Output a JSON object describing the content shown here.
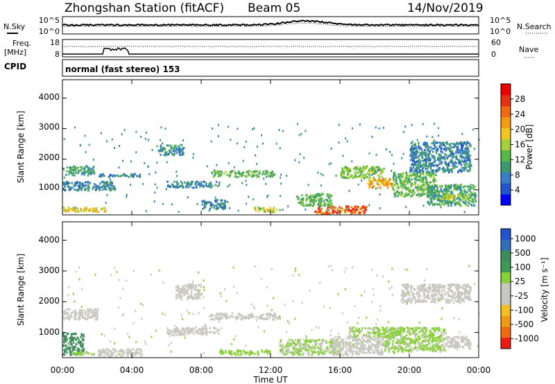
{
  "header": {
    "station": "Zhongshan Station (fitACF)",
    "beam": "Beam 05",
    "date": "14/Nov/2019"
  },
  "noise_panel": {
    "left_label": "N.Sky",
    "left_ticks": [
      "10^5",
      "10^0"
    ],
    "right_ticks": [
      "10^5",
      "10^0"
    ],
    "right_label": "N.Search"
  },
  "freq_panel": {
    "label_line1": "Freq.",
    "label_line2": "[MHz]",
    "left_ticks": [
      "18",
      "8"
    ],
    "right_ticks": [
      "60",
      "0"
    ],
    "right_label": "Nave"
  },
  "cpid": {
    "label": "CPID",
    "text": "normal (fast stereo) 153"
  },
  "power_panel": {
    "ylabel": "Slant Range [km]",
    "yticks": [
      "1000",
      "2000",
      "3000",
      "4000"
    ],
    "colorbar": {
      "label": "Power [dB]",
      "ticks": [
        "4",
        "8",
        "12",
        "16",
        "20",
        "24",
        "28"
      ],
      "colors": [
        "#0000ff",
        "#2255cc",
        "#3a7dc8",
        "#3d9a6e",
        "#55b848",
        "#a6cf3c",
        "#f2c81e",
        "#f39c12",
        "#ef6a10",
        "#e63012",
        "#ee0000"
      ]
    }
  },
  "velocity_panel": {
    "ylabel": "Slant Range [km]",
    "yticks": [
      "1000",
      "2000",
      "3000",
      "4000"
    ],
    "colorbar": {
      "label": "Velocity [m s⁻¹]",
      "ticks": [
        "1000",
        "500",
        "100",
        "25",
        "-25",
        "-100",
        "-500",
        "-1000"
      ],
      "colors": [
        "#2255cc",
        "#2f6fba",
        "#3d8c5a",
        "#3f9a58",
        "#88d038",
        "#c8c8c0",
        "#c8c8c0",
        "#f0c020",
        "#f09a10",
        "#f06a10",
        "#ee1a10"
      ]
    }
  },
  "x_axis": {
    "label": "Time UT",
    "ticks": [
      "00:00",
      "04:00",
      "08:00",
      "12:00",
      "16:00",
      "20:00",
      "00:00"
    ]
  },
  "chart_data": [
    {
      "type": "heatmap",
      "title": "Power",
      "ylabel": "Slant Range [km]",
      "xlabel": "Time UT",
      "xlim_hours": [
        0,
        24
      ],
      "ylim_km": [
        180,
        4600
      ],
      "clim_db": [
        0,
        30
      ],
      "regions": [
        {
          "t": [
            0.0,
            1.8
          ],
          "r": [
            1500,
            1800
          ],
          "level": 9
        },
        {
          "t": [
            0.0,
            3.0
          ],
          "r": [
            1000,
            1300
          ],
          "level": 7
        },
        {
          "t": [
            0.0,
            2.6
          ],
          "r": [
            300,
            450
          ],
          "level": 18
        },
        {
          "t": [
            2.0,
            4.5
          ],
          "r": [
            1450,
            1550
          ],
          "level": 7
        },
        {
          "t": [
            5.5,
            7.0
          ],
          "r": [
            2150,
            2500
          ],
          "level": 8
        },
        {
          "t": [
            6.0,
            9.0
          ],
          "r": [
            1100,
            1300
          ],
          "level": 7
        },
        {
          "t": [
            8.5,
            12.2
          ],
          "r": [
            1450,
            1650
          ],
          "level": 12
        },
        {
          "t": [
            8.0,
            9.5
          ],
          "r": [
            400,
            700
          ],
          "level": 7
        },
        {
          "t": [
            11.0,
            12.5
          ],
          "r": [
            300,
            450
          ],
          "level": 16
        },
        {
          "t": [
            14.5,
            17.5
          ],
          "r": [
            250,
            500
          ],
          "level": 25
        },
        {
          "t": [
            13.5,
            15.5
          ],
          "r": [
            500,
            900
          ],
          "level": 12
        },
        {
          "t": [
            16.0,
            18.5
          ],
          "r": [
            1400,
            1800
          ],
          "level": 13
        },
        {
          "t": [
            17.5,
            19.0
          ],
          "r": [
            1100,
            1400
          ],
          "level": 20
        },
        {
          "t": [
            19.0,
            21.5
          ],
          "r": [
            800,
            1600
          ],
          "level": 12
        },
        {
          "t": [
            20.0,
            23.5
          ],
          "r": [
            1600,
            2600
          ],
          "level": 7
        },
        {
          "t": [
            21.0,
            23.8
          ],
          "r": [
            500,
            1200
          ],
          "level": 10
        },
        {
          "t": [
            21.8,
            23.5
          ],
          "r": [
            700,
            900
          ],
          "level": 15
        }
      ]
    },
    {
      "type": "heatmap",
      "title": "Velocity",
      "ylabel": "Slant Range [km]",
      "xlabel": "Time UT",
      "xlim_hours": [
        0,
        24
      ],
      "ylim_km": [
        180,
        4600
      ],
      "clim_ms": [
        -1000,
        1000
      ],
      "regions": [
        {
          "t": [
            0.0,
            2.0
          ],
          "r": [
            1450,
            1800
          ],
          "v": 0
        },
        {
          "t": [
            0.0,
            1.2
          ],
          "r": [
            300,
            1000
          ],
          "v": 600
        },
        {
          "t": [
            0.5,
            2.6
          ],
          "r": [
            300,
            400
          ],
          "v": 120
        },
        {
          "t": [
            2.0,
            4.5
          ],
          "r": [
            250,
            500
          ],
          "v": -150
        },
        {
          "t": [
            6.5,
            8.0
          ],
          "r": [
            2100,
            2600
          ],
          "v": 0
        },
        {
          "t": [
            8.5,
            12.5
          ],
          "r": [
            1450,
            1650
          ],
          "v": 0
        },
        {
          "t": [
            6.0,
            9.0
          ],
          "r": [
            950,
            1200
          ],
          "v": 0
        },
        {
          "t": [
            9.0,
            12.0
          ],
          "r": [
            300,
            450
          ],
          "v": 200
        },
        {
          "t": [
            12.5,
            16.0
          ],
          "r": [
            300,
            800
          ],
          "v": 120
        },
        {
          "t": [
            15.5,
            18.5
          ],
          "r": [
            300,
            900
          ],
          "v": -120
        },
        {
          "t": [
            16.5,
            19.5
          ],
          "r": [
            900,
            1200
          ],
          "v": 150
        },
        {
          "t": [
            19.5,
            23.5
          ],
          "r": [
            2000,
            2600
          ],
          "v": 0
        },
        {
          "t": [
            18.5,
            22.0
          ],
          "r": [
            400,
            1200
          ],
          "v": 150
        },
        {
          "t": [
            22.0,
            23.5
          ],
          "r": [
            500,
            900
          ],
          "v": -200
        }
      ]
    }
  ]
}
